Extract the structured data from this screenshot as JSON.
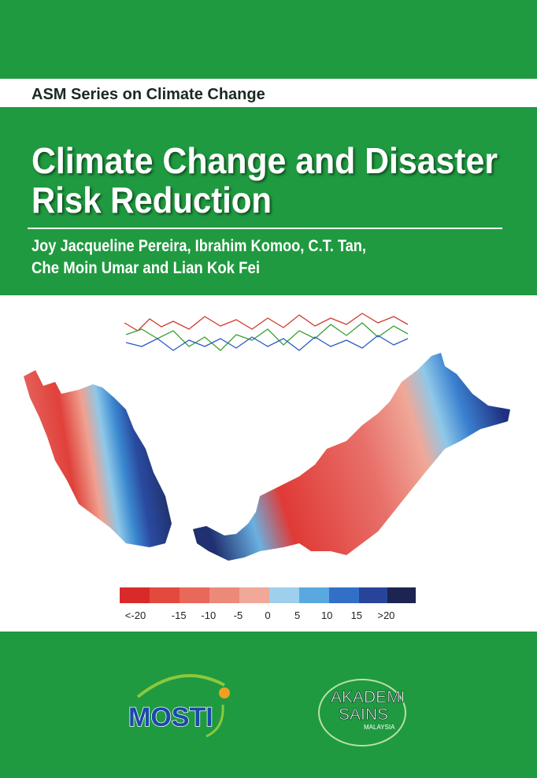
{
  "header": {
    "series": "ASM Series on Climate Change"
  },
  "title": [
    "Climate Change and Disaster",
    "Risk Reduction"
  ],
  "authors": [
    "Joy Jacqueline Pereira, Ibrahim Komoo, C.T. Tan,",
    "Che Moin Umar and Lian Kok Fei"
  ],
  "legend": {
    "labels": [
      "<-20",
      "-15",
      "-10",
      "-5",
      "0",
      "5",
      "10",
      "15",
      ">20"
    ]
  },
  "logos": {
    "mosti": "MOSTI",
    "akademi": [
      "AKADEMI",
      "SAINS",
      "MALAYSIA"
    ]
  }
}
